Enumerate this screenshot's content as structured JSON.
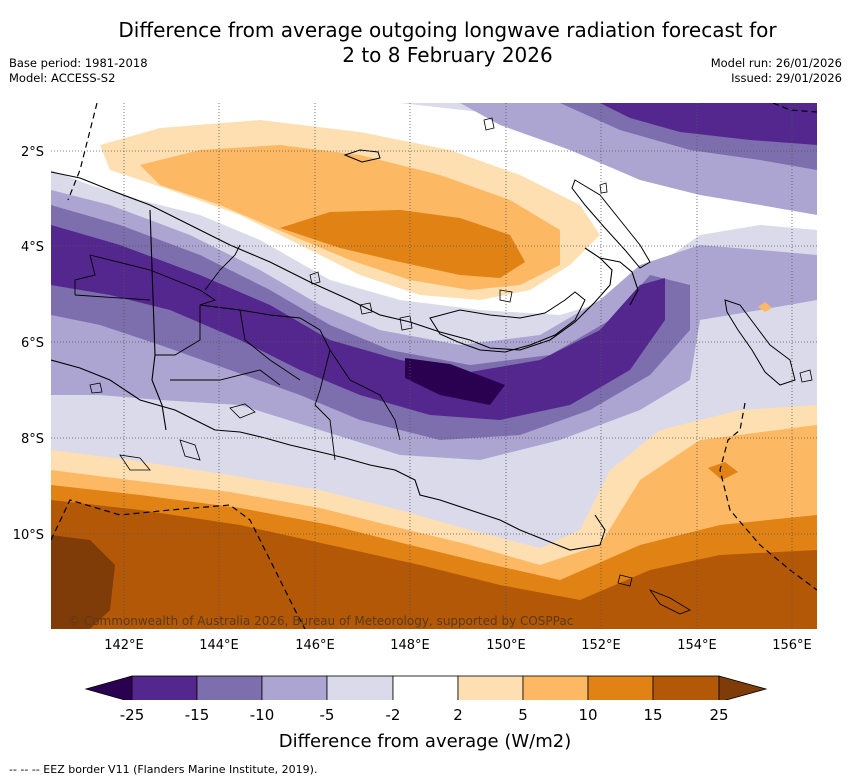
{
  "header": {
    "title_line1": "Difference from average outgoing longwave radiation forecast for",
    "title_line2": "2 to 8 February 2026",
    "base_period": "Base period: 1981-2018",
    "model": "Model: ACCESS-S2",
    "model_run": "Model run: 26/01/2026",
    "issued": "Issued: 29/01/2026"
  },
  "map": {
    "lat_labels": [
      "2°S",
      "4°S",
      "6°S",
      "8°S",
      "10°S"
    ],
    "lon_labels": [
      "142°E",
      "144°E",
      "146°E",
      "148°E",
      "150°E",
      "152°E",
      "154°E",
      "156°E"
    ],
    "copyright": "© Commonwealth of Australia 2026, Bureau of Meteorology, supported by COSPPac",
    "colors": {
      "lt_m25": "#2a0050",
      "m25_m15": "#54278f",
      "m15_m10": "#7d6fae",
      "m10_m5": "#ada5d1",
      "m5_m2": "#dadaeb",
      "m2_2": "#ffffff",
      "p2_5": "#fedfb1",
      "p5_10": "#fdb863",
      "p10_15": "#e08214",
      "p15_25": "#b35806",
      "gt_25": "#7f3b08",
      "coast": "#000000",
      "grid": "#555555"
    }
  },
  "colorbar": {
    "ticks": [
      "-25",
      "-15",
      "-10",
      "-5",
      "-2",
      "2",
      "5",
      "10",
      "15",
      "25"
    ],
    "title": "Difference from average (W/m2)"
  },
  "footer": {
    "eez_legend": "-- -- -- EEZ border V11 (Flanders Marine Institute, 2019)."
  }
}
